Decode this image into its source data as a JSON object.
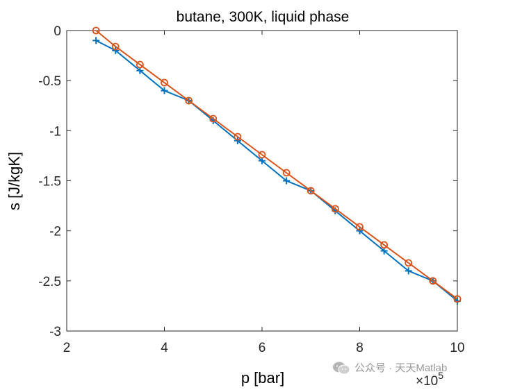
{
  "chart_data": {
    "type": "line",
    "title": "butane, 300K, liquid phase",
    "xlabel": "p [bar]",
    "ylabel": "s [J/kgK]",
    "x_exponent_label": "×10",
    "x_exponent_power": "5",
    "xlim": [
      2,
      10
    ],
    "ylim": [
      -3,
      0
    ],
    "xticks": [
      2,
      4,
      6,
      8,
      10
    ],
    "yticks": [
      0,
      -0.5,
      -1,
      -1.5,
      -2,
      -2.5,
      -3
    ],
    "xtick_labels": [
      "2",
      "4",
      "6",
      "8",
      "10"
    ],
    "ytick_labels": [
      "0",
      "-0.5",
      "-1",
      "-1.5",
      "-2",
      "-2.5",
      "-3"
    ],
    "grid": false,
    "x": [
      2.6,
      3.0,
      3.5,
      4.0,
      4.5,
      5.0,
      5.5,
      6.0,
      6.5,
      7.0,
      7.5,
      8.0,
      8.5,
      9.0,
      9.5,
      10.0
    ],
    "series": [
      {
        "marker": "plus",
        "color": "#0072bd",
        "values": [
          -0.1,
          -0.2,
          -0.4,
          -0.6,
          -0.7,
          -0.9,
          -1.1,
          -1.3,
          -1.5,
          -1.6,
          -1.8,
          -2.0,
          -2.2,
          -2.4,
          -2.5,
          -2.7
        ]
      },
      {
        "marker": "circle",
        "color": "#d95319",
        "values": [
          0.0,
          -0.16,
          -0.34,
          -0.52,
          -0.7,
          -0.88,
          -1.06,
          -1.24,
          -1.42,
          -1.6,
          -1.78,
          -1.96,
          -2.14,
          -2.32,
          -2.5,
          -2.68
        ]
      }
    ]
  },
  "watermark": {
    "icon": "wechat-icon",
    "text": "公众号 · 天天Matlab"
  }
}
